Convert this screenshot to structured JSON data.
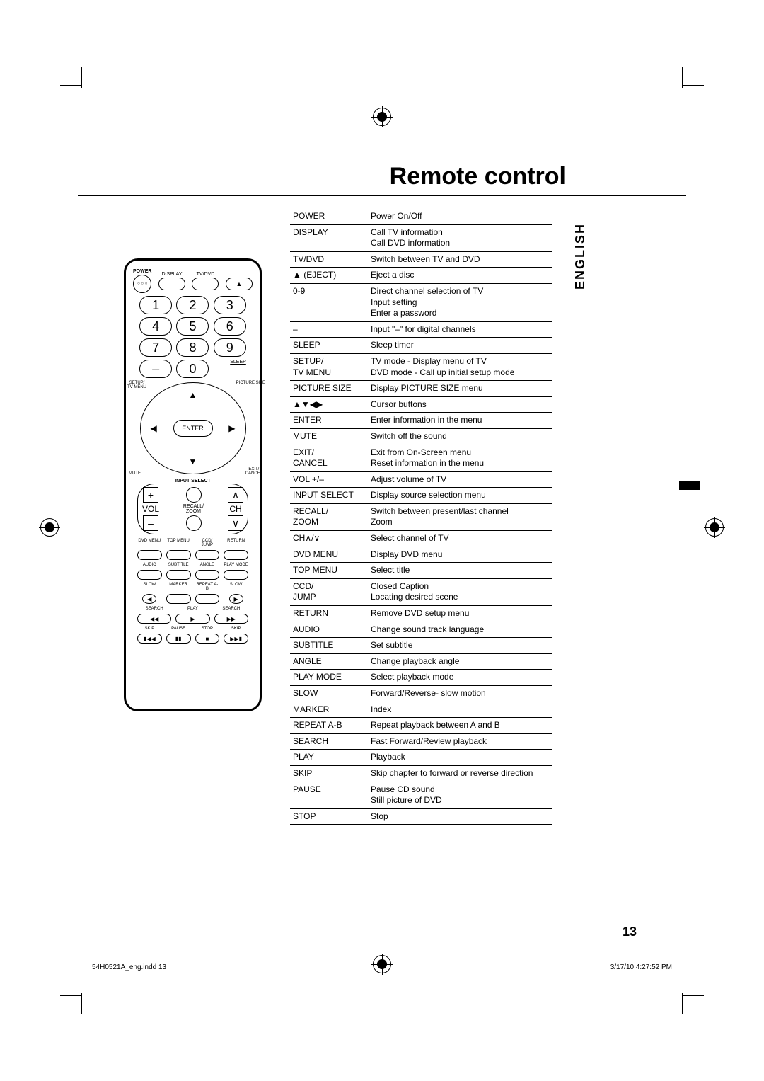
{
  "title": "Remote control",
  "language_tab": "ENGLISH",
  "page_number": "13",
  "footer": {
    "left": "54H0521A_eng.indd   13",
    "right": "3/17/10   4:27:52 PM"
  },
  "remote": {
    "power_label": "POWER",
    "display_label": "DISPLAY",
    "tvdvd_label": "TV/DVD",
    "eject_symbol": "▲",
    "numbers": [
      "1",
      "2",
      "3",
      "4",
      "5",
      "6",
      "7",
      "8",
      "9",
      "–",
      "0"
    ],
    "sleep_label": "SLEEP",
    "setup_label": "SETUP/\nTV MENU",
    "picsize_label": "PICTURE SIZE",
    "enter_label": "ENTER",
    "mute_label": "MUTE",
    "exit_label": "EXIT/\nCANCEL",
    "input_select_label": "INPUT SELECT",
    "vol_label": "VOL",
    "ch_label": "CH",
    "recall_label": "RECALL/\nZOOM",
    "row_a": [
      "DVD MENU",
      "TOP MENU",
      "CCD/\nJUMP",
      "RETURN"
    ],
    "row_b": [
      "AUDIO",
      "SUBTITLE",
      "ANGLE",
      "PLAY MODE"
    ],
    "row_c": [
      "SLOW",
      "MARKER",
      "REPEAT A-B",
      "SLOW"
    ],
    "row_c_sym": [
      "◀",
      " ",
      " ",
      "▶"
    ],
    "row_d": [
      "SEARCH",
      "",
      "PLAY",
      "",
      "SEARCH"
    ],
    "row_d_sym": [
      "◀◀",
      "▶",
      "▶▶"
    ],
    "row_e": [
      "SKIP",
      "PAUSE",
      "STOP",
      "SKIP"
    ],
    "row_e_sym": [
      "▮◀◀",
      "▮▮",
      "■",
      "▶▶▮"
    ]
  },
  "functions": [
    {
      "k": "POWER",
      "v": "Power On/Off"
    },
    {
      "k": "DISPLAY",
      "v": "Call TV information\nCall DVD information"
    },
    {
      "k": "TV/DVD",
      "v": "Switch between TV and DVD"
    },
    {
      "k": "▲ (EJECT)",
      "v": "Eject a disc"
    },
    {
      "k": "0-9",
      "v": "Direct channel selection of TV\nInput setting\nEnter a password"
    },
    {
      "k": "–",
      "v": "Input \"–\" for digital channels"
    },
    {
      "k": "SLEEP",
      "v": "Sleep timer"
    },
    {
      "k": "SETUP/\nTV MENU",
      "v": "TV mode - Display menu of TV\nDVD mode - Call up initial setup mode"
    },
    {
      "k": "PICTURE SIZE",
      "v": "Display PICTURE SIZE menu"
    },
    {
      "k": "▲▼◀▶",
      "v": "Cursor buttons"
    },
    {
      "k": "ENTER",
      "v": "Enter information in the menu"
    },
    {
      "k": "MUTE",
      "v": "Switch off the sound"
    },
    {
      "k": "EXIT/\nCANCEL",
      "v": "Exit from On-Screen menu\nReset information in the menu"
    },
    {
      "k": "VOL +/–",
      "v": "Adjust volume of TV"
    },
    {
      "k": "INPUT SELECT",
      "v": "Display source selection menu"
    },
    {
      "k": "RECALL/\nZOOM",
      "v": "Switch between present/last channel\nZoom"
    },
    {
      "k": "CH∧/∨",
      "v": "Select channel of TV"
    },
    {
      "k": "DVD MENU",
      "v": "Display DVD menu"
    },
    {
      "k": "TOP MENU",
      "v": "Select title"
    },
    {
      "k": "CCD/\nJUMP",
      "v": "Closed Caption\nLocating desired scene"
    },
    {
      "k": "RETURN",
      "v": "Remove DVD setup menu"
    },
    {
      "k": "AUDIO",
      "v": "Change sound track language"
    },
    {
      "k": "SUBTITLE",
      "v": "Set subtitle"
    },
    {
      "k": "ANGLE",
      "v": "Change playback angle"
    },
    {
      "k": "PLAY MODE",
      "v": "Select playback mode"
    },
    {
      "k": "SLOW",
      "v": "Forward/Reverse- slow motion"
    },
    {
      "k": "MARKER",
      "v": "Index"
    },
    {
      "k": "REPEAT A-B",
      "v": "Repeat playback between A and B"
    },
    {
      "k": "SEARCH",
      "v": "Fast Forward/Review playback"
    },
    {
      "k": "PLAY",
      "v": "Playback"
    },
    {
      "k": "SKIP",
      "v": "Skip chapter to forward or reverse direction"
    },
    {
      "k": "PAUSE",
      "v": "Pause CD sound\nStill picture of DVD"
    },
    {
      "k": "STOP",
      "v": "Stop"
    }
  ]
}
